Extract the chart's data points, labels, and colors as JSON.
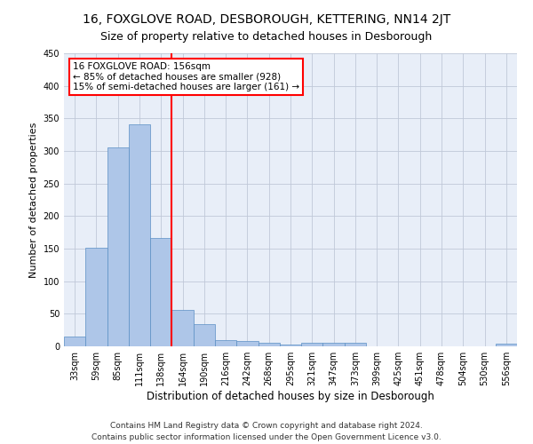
{
  "title_line1": "16, FOXGLOVE ROAD, DESBOROUGH, KETTERING, NN14 2JT",
  "title_line2": "Size of property relative to detached houses in Desborough",
  "xlabel": "Distribution of detached houses by size in Desborough",
  "ylabel": "Number of detached properties",
  "footnote": "Contains HM Land Registry data © Crown copyright and database right 2024.\nContains public sector information licensed under the Open Government Licence v3.0.",
  "bar_labels": [
    "33sqm",
    "59sqm",
    "85sqm",
    "111sqm",
    "138sqm",
    "164sqm",
    "190sqm",
    "216sqm",
    "242sqm",
    "268sqm",
    "295sqm",
    "321sqm",
    "347sqm",
    "373sqm",
    "399sqm",
    "425sqm",
    "451sqm",
    "478sqm",
    "504sqm",
    "530sqm",
    "556sqm"
  ],
  "bar_heights": [
    15,
    152,
    306,
    341,
    167,
    56,
    34,
    10,
    8,
    6,
    3,
    5,
    5,
    5,
    0,
    0,
    0,
    0,
    0,
    0,
    4
  ],
  "bar_color": "#aec6e8",
  "bar_edgecolor": "#5a8fc4",
  "vline_x": 4.5,
  "vline_color": "red",
  "annotation_text": "16 FOXGLOVE ROAD: 156sqm\n← 85% of detached houses are smaller (928)\n15% of semi-detached houses are larger (161) →",
  "ylim": [
    0,
    450
  ],
  "yticks": [
    0,
    50,
    100,
    150,
    200,
    250,
    300,
    350,
    400,
    450
  ],
  "bg_color": "#e8eef8",
  "grid_color": "#c0c8d8",
  "title1_fontsize": 10,
  "title2_fontsize": 9,
  "xlabel_fontsize": 8.5,
  "ylabel_fontsize": 8,
  "tick_fontsize": 7,
  "footnote_fontsize": 6.5,
  "ann_fontsize": 7.5
}
